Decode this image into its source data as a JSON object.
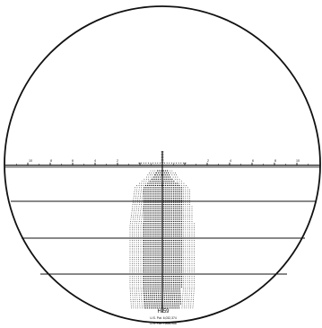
{
  "reticle": {
    "model": "H-59",
    "patent_line_1": "U.S. Pat. 6,032,374",
    "patent_line_2": "U.S. Pat. 7,856,968",
    "horizontal_scale_labels": [
      "10",
      "8",
      "6",
      "4",
      "2",
      "2",
      "4",
      "6",
      "8",
      "10"
    ],
    "line_color": "#111111",
    "background_color": "#ffffff"
  }
}
